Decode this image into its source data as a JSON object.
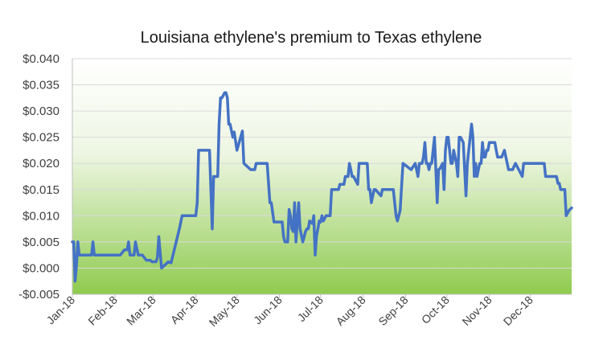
{
  "chart_data": {
    "type": "line",
    "title": "Louisiana ethylene's premium to Texas ethylene",
    "xlabel": "",
    "ylabel": "",
    "ylim": [
      -0.005,
      0.04
    ],
    "y_ticks": [
      -0.005,
      0.0,
      0.005,
      0.01,
      0.015,
      0.02,
      0.025,
      0.03,
      0.035,
      0.04
    ],
    "y_tick_labels": [
      "-$0.005",
      "$0.000",
      "$0.005",
      "$0.010",
      "$0.015",
      "$0.020",
      "$0.025",
      "$0.030",
      "$0.035",
      "$0.040"
    ],
    "x_tick_labels": [
      "Jan-18",
      "Feb-18",
      "Mar-18",
      "Apr-18",
      "May-18",
      "Jun-18",
      "Jul-18",
      "Aug-18",
      "Sep-18",
      "Oct-18",
      "Nov-18",
      "Dec-18"
    ],
    "x_range": [
      "2018-01-01",
      "2018-12-31"
    ],
    "grid": "horizontal",
    "background": "gradient white to green",
    "colors": {
      "line": "#4472c4",
      "bg_top": "#ffffff",
      "bg_bottom": "#8fcb4f"
    },
    "series": [
      {
        "x": [
          "2018-01-01",
          "2018-01-02",
          "2018-01-03",
          "2018-01-04",
          "2018-01-05",
          "2018-01-06",
          "2018-01-07",
          "2018-01-08",
          "2018-01-10",
          "2018-01-12",
          "2018-01-15",
          "2018-01-16",
          "2018-01-17",
          "2018-01-19",
          "2018-01-22",
          "2018-01-26",
          "2018-01-31",
          "2018-02-05",
          "2018-02-08",
          "2018-02-10",
          "2018-02-11",
          "2018-02-12",
          "2018-02-14",
          "2018-02-15",
          "2018-02-16",
          "2018-02-18",
          "2018-02-21",
          "2018-02-24",
          "2018-02-27",
          "2018-02-28",
          "2018-03-01",
          "2018-03-02",
          "2018-03-03",
          "2018-03-04",
          "2018-03-05",
          "2018-03-07",
          "2018-03-12",
          "2018-03-14",
          "2018-03-20",
          "2018-03-22",
          "2018-03-23",
          "2018-03-24",
          "2018-04-01",
          "2018-04-02",
          "2018-04-03",
          "2018-04-04",
          "2018-04-07",
          "2018-04-08",
          "2018-04-09",
          "2018-04-10",
          "2018-04-11",
          "2018-04-13",
          "2018-04-14",
          "2018-04-15",
          "2018-04-16",
          "2018-04-17",
          "2018-04-18",
          "2018-04-19",
          "2018-04-20",
          "2018-04-21",
          "2018-04-22",
          "2018-04-23",
          "2018-04-24",
          "2018-04-25",
          "2018-04-26",
          "2018-04-28",
          "2018-04-29",
          "2018-05-01",
          "2018-05-05",
          "2018-05-06",
          "2018-05-11",
          "2018-05-14",
          "2018-05-15",
          "2018-05-16",
          "2018-05-17",
          "2018-05-18",
          "2018-05-19",
          "2018-05-23",
          "2018-05-25",
          "2018-05-26",
          "2018-05-28",
          "2018-05-30",
          "2018-05-31",
          "2018-06-01",
          "2018-06-02",
          "2018-06-03",
          "2018-06-04",
          "2018-06-05",
          "2018-06-06",
          "2018-06-07",
          "2018-06-08",
          "2018-06-09",
          "2018-06-10",
          "2018-06-11",
          "2018-06-12",
          "2018-06-13",
          "2018-06-15",
          "2018-06-16",
          "2018-06-18",
          "2018-06-20",
          "2018-06-21",
          "2018-06-22",
          "2018-06-23",
          "2018-06-25",
          "2018-06-26",
          "2018-06-27",
          "2018-06-28",
          "2018-06-29",
          "2018-06-30",
          "2018-07-01",
          "2018-07-02",
          "2018-07-03",
          "2018-07-04",
          "2018-07-05",
          "2018-07-06",
          "2018-07-07",
          "2018-07-08",
          "2018-07-09",
          "2018-07-14",
          "2018-07-15",
          "2018-07-18",
          "2018-07-19",
          "2018-07-21",
          "2018-07-22",
          "2018-07-23",
          "2018-07-24",
          "2018-07-25",
          "2018-07-28",
          "2018-07-29",
          "2018-08-01",
          "2018-08-02",
          "2018-08-04",
          "2018-08-05",
          "2018-08-06",
          "2018-08-07",
          "2018-08-09",
          "2018-08-10",
          "2018-08-14",
          "2018-08-15",
          "2018-08-17",
          "2018-08-18",
          "2018-08-21",
          "2018-08-23",
          "2018-08-24",
          "2018-08-25",
          "2018-08-26",
          "2018-08-28",
          "2018-08-30",
          "2018-09-05",
          "2018-09-08",
          "2018-09-10",
          "2018-09-11",
          "2018-09-12",
          "2018-09-13",
          "2018-09-14",
          "2018-09-15",
          "2018-09-16",
          "2018-09-17",
          "2018-09-18",
          "2018-09-19",
          "2018-09-20",
          "2018-09-22",
          "2018-09-24",
          "2018-09-25",
          "2018-09-26",
          "2018-09-27",
          "2018-09-28",
          "2018-09-29",
          "2018-09-30",
          "2018-10-01",
          "2018-10-02",
          "2018-10-03",
          "2018-10-04",
          "2018-10-05",
          "2018-10-06",
          "2018-10-08",
          "2018-10-09",
          "2018-10-10",
          "2018-10-11",
          "2018-10-13",
          "2018-10-15",
          "2018-10-16",
          "2018-10-17",
          "2018-10-19",
          "2018-10-20",
          "2018-10-21",
          "2018-10-22",
          "2018-10-23",
          "2018-10-24",
          "2018-10-25",
          "2018-10-26",
          "2018-10-27",
          "2018-10-28",
          "2018-10-29",
          "2018-10-30",
          "2018-10-31",
          "2018-11-01",
          "2018-11-02",
          "2018-11-03",
          "2018-11-04",
          "2018-11-05",
          "2018-11-06",
          "2018-11-07",
          "2018-11-08",
          "2018-11-09",
          "2018-11-10",
          "2018-11-12",
          "2018-11-15",
          "2018-11-16",
          "2018-11-18",
          "2018-11-20",
          "2018-11-25",
          "2018-11-26",
          "2018-11-29",
          "2018-11-30",
          "2018-12-01",
          "2018-12-03",
          "2018-12-04",
          "2018-12-05",
          "2018-12-07",
          "2018-12-08",
          "2018-12-09",
          "2018-12-11",
          "2018-12-12",
          "2018-12-15",
          "2018-12-20",
          "2018-12-21",
          "2018-12-22",
          "2018-12-23",
          "2018-12-26",
          "2018-12-27",
          "2018-12-28",
          "2018-12-29",
          "2018-12-31"
        ],
        "values": [
          0.005,
          0.005,
          -0.0025,
          0.0005,
          0.005,
          0.0025,
          0.0025,
          0.0025,
          0.0025,
          0.0025,
          0.0025,
          0.005,
          0.0025,
          0.0025,
          0.0025,
          0.0025,
          0.0025,
          0.0025,
          0.0035,
          0.0035,
          0.005,
          0.0025,
          0.0025,
          0.0025,
          0.005,
          0.0025,
          0.0025,
          0.0015,
          0.0015,
          0.0012,
          0.0012,
          0.0012,
          0.0012,
          0.002,
          0.006,
          0.0,
          0.0012,
          0.001,
          0.0075,
          0.01,
          0.01,
          0.01,
          0.01,
          0.0125,
          0.0225,
          0.0225,
          0.0225,
          0.0225,
          0.0225,
          0.0225,
          0.0225,
          0.0075,
          0.0175,
          0.0175,
          0.0175,
          0.0175,
          0.0275,
          0.0325,
          0.0325,
          0.033,
          0.0335,
          0.0335,
          0.0325,
          0.0275,
          0.0275,
          0.025,
          0.026,
          0.0225,
          0.0262,
          0.02,
          0.0188,
          0.0188,
          0.02,
          0.02,
          0.02,
          0.02,
          0.02,
          0.02,
          0.0125,
          0.0125,
          0.0088,
          0.0088,
          0.0088,
          0.0088,
          0.0088,
          0.0088,
          0.006,
          0.005,
          0.005,
          0.005,
          0.0112,
          0.01,
          0.0075,
          0.007,
          0.0125,
          0.005,
          0.0125,
          0.0075,
          0.005,
          0.007,
          0.0075,
          0.0075,
          0.009,
          0.0085,
          0.01,
          0.0025,
          0.0062,
          0.0075,
          0.009,
          0.0088,
          0.01,
          0.009,
          0.0095,
          0.01,
          0.01,
          0.01,
          0.01,
          0.015,
          0.015,
          0.016,
          0.016,
          0.0175,
          0.0175,
          0.02,
          0.0188,
          0.0175,
          0.0175,
          0.016,
          0.02,
          0.02,
          0.02,
          0.02,
          0.015,
          0.015,
          0.0125,
          0.015,
          0.015,
          0.0138,
          0.015,
          0.015,
          0.015,
          0.015,
          0.015,
          0.0125,
          0.01,
          0.009,
          0.011,
          0.02,
          0.0188,
          0.02,
          0.0175,
          0.02,
          0.02,
          0.02,
          0.0212,
          0.024,
          0.02,
          0.02,
          0.0188,
          0.02,
          0.02,
          0.025,
          0.0125,
          0.0188,
          0.019,
          0.0195,
          0.02,
          0.015,
          0.0225,
          0.025,
          0.025,
          0.0225,
          0.02,
          0.02,
          0.0225,
          0.02,
          0.0175,
          0.025,
          0.025,
          0.024,
          0.0138,
          0.02,
          0.0225,
          0.0275,
          0.025,
          0.0175,
          0.02,
          0.0175,
          0.0188,
          0.02,
          0.02,
          0.024,
          0.0212,
          0.0212,
          0.0225,
          0.0225,
          0.024,
          0.024,
          0.024,
          0.024,
          0.024,
          0.0225,
          0.0212,
          0.0212,
          0.0212,
          0.0212,
          0.0225,
          0.0188,
          0.0188,
          0.0188,
          0.02,
          0.0175,
          0.02,
          0.02,
          0.02,
          0.02,
          0.02,
          0.02,
          0.02,
          0.02,
          0.02,
          0.02,
          0.02,
          0.0175,
          0.0175,
          0.0175,
          0.0162,
          0.0162,
          0.015,
          0.015,
          0.01,
          0.0105,
          0.011,
          0.0115
        ]
      }
    ]
  }
}
